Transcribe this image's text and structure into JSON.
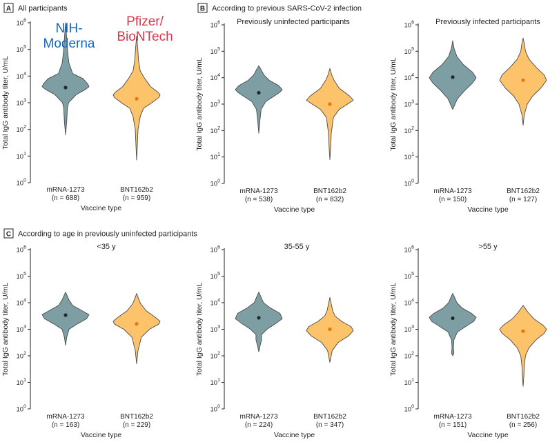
{
  "annotations": [
    {
      "lines": [
        "NIH-",
        "Moderna"
      ],
      "color": "#1565c0"
    },
    {
      "lines": [
        "Pfizer/",
        "BioNTech"
      ],
      "color": "#e0364a"
    }
  ],
  "colors": {
    "mrna": "#7d9ea3",
    "bnt": "#fcc36b",
    "mrna_dot": "#1f2b2e",
    "bnt_dot": "#e8760a"
  },
  "chart_data": [
    {
      "panel": "A",
      "section_title": "All participants",
      "subtitle": "",
      "type": "violin",
      "ylabel": "Total IgG antibody titer, U/mL",
      "xlabel": "Vaccine type",
      "yscale": "log10",
      "ylim": [
        1,
        1000000
      ],
      "series": [
        {
          "name": "mRNA-1273",
          "n_label": "(n = 688)",
          "median": 3700,
          "profile": [
            [
              1.8,
              0
            ],
            [
              2.3,
              0.05
            ],
            [
              2.8,
              0.08
            ],
            [
              3.0,
              0.13
            ],
            [
              3.3,
              0.45
            ],
            [
              3.5,
              0.85
            ],
            [
              3.6,
              1.0
            ],
            [
              3.7,
              0.95
            ],
            [
              3.9,
              0.75
            ],
            [
              4.1,
              0.3
            ],
            [
              4.5,
              0.14
            ],
            [
              4.9,
              0.09
            ],
            [
              5.4,
              0.05
            ],
            [
              6.0,
              0
            ]
          ]
        },
        {
          "name": "BNT162b2",
          "n_label": "(n = 959)",
          "median": 1400,
          "profile": [
            [
              0.85,
              0
            ],
            [
              1.4,
              0.03
            ],
            [
              2.0,
              0.06
            ],
            [
              2.5,
              0.16
            ],
            [
              2.8,
              0.3
            ],
            [
              3.0,
              0.65
            ],
            [
              3.2,
              0.95
            ],
            [
              3.3,
              1.0
            ],
            [
              3.4,
              0.9
            ],
            [
              3.6,
              0.6
            ],
            [
              3.9,
              0.35
            ],
            [
              4.2,
              0.15
            ],
            [
              4.6,
              0.08
            ],
            [
              5.0,
              0.05
            ],
            [
              5.5,
              0
            ]
          ]
        }
      ]
    },
    {
      "panel": "B",
      "section_title": "According to previous SARS-CoV-2 infection",
      "subtitle": "Previously uninfected participants",
      "type": "violin",
      "ylabel": "Total IgG antibody titer, U/mL",
      "xlabel": "Vaccine type",
      "yscale": "log10",
      "ylim": [
        1,
        1000000
      ],
      "series": [
        {
          "name": "mRNA-1273",
          "n_label": "(n = 538)",
          "median": 2700,
          "profile": [
            [
              1.9,
              0
            ],
            [
              2.4,
              0.05
            ],
            [
              2.8,
              0.1
            ],
            [
              3.1,
              0.3
            ],
            [
              3.3,
              0.65
            ],
            [
              3.45,
              0.9
            ],
            [
              3.55,
              1.0
            ],
            [
              3.7,
              0.85
            ],
            [
              3.9,
              0.45
            ],
            [
              4.1,
              0.22
            ],
            [
              4.3,
              0.1
            ],
            [
              4.45,
              0
            ]
          ]
        },
        {
          "name": "BNT162b2",
          "n_label": "(n = 832)",
          "median": 1000,
          "profile": [
            [
              0.9,
              0
            ],
            [
              1.3,
              0.03
            ],
            [
              1.9,
              0.06
            ],
            [
              2.5,
              0.15
            ],
            [
              2.8,
              0.4
            ],
            [
              3.0,
              0.75
            ],
            [
              3.15,
              1.0
            ],
            [
              3.3,
              0.85
            ],
            [
              3.6,
              0.4
            ],
            [
              3.9,
              0.18
            ],
            [
              4.1,
              0.08
            ],
            [
              4.35,
              0
            ]
          ]
        }
      ]
    },
    {
      "panel": "",
      "section_title": "",
      "subtitle": "Previously infected participants",
      "type": "violin",
      "ylabel": "Total IgG antibody titer, U/mL",
      "xlabel": "Vaccine type",
      "yscale": "log10",
      "ylim": [
        1,
        1000000
      ],
      "series": [
        {
          "name": "mRNA-1273",
          "n_label": "(n = 150)",
          "median": 10500,
          "profile": [
            [
              2.8,
              0
            ],
            [
              3.2,
              0.2
            ],
            [
              3.5,
              0.5
            ],
            [
              3.8,
              0.85
            ],
            [
              4.0,
              1.0
            ],
            [
              4.2,
              0.85
            ],
            [
              4.5,
              0.45
            ],
            [
              4.8,
              0.18
            ],
            [
              5.1,
              0.06
            ],
            [
              5.4,
              0
            ]
          ]
        },
        {
          "name": "BNT162b2",
          "n_label": "(n = 127)",
          "median": 8000,
          "profile": [
            [
              2.2,
              0
            ],
            [
              2.6,
              0.05
            ],
            [
              3.0,
              0.18
            ],
            [
              3.3,
              0.4
            ],
            [
              3.6,
              0.75
            ],
            [
              3.9,
              1.0
            ],
            [
              4.1,
              0.9
            ],
            [
              4.4,
              0.55
            ],
            [
              4.7,
              0.25
            ],
            [
              5.0,
              0.1
            ],
            [
              5.3,
              0.05
            ],
            [
              5.5,
              0
            ]
          ]
        }
      ]
    },
    {
      "panel": "C",
      "section_title": "According to age in previously uninfected participants",
      "subtitle": "<35 y",
      "type": "violin",
      "ylabel": "Total IgG antibody titer, U/mL",
      "xlabel": "Vaccine type",
      "yscale": "log10",
      "ylim": [
        1,
        1000000
      ],
      "series": [
        {
          "name": "mRNA-1273",
          "n_label": "(n = 163)",
          "median": 3400,
          "profile": [
            [
              2.4,
              0
            ],
            [
              2.7,
              0.05
            ],
            [
              3.0,
              0.15
            ],
            [
              3.2,
              0.5
            ],
            [
              3.4,
              0.9
            ],
            [
              3.55,
              1.0
            ],
            [
              3.7,
              0.7
            ],
            [
              3.9,
              0.3
            ],
            [
              4.1,
              0.15
            ],
            [
              4.4,
              0
            ]
          ]
        },
        {
          "name": "BNT162b2",
          "n_label": "(n = 229)",
          "median": 1600,
          "profile": [
            [
              1.7,
              0
            ],
            [
              2.2,
              0.06
            ],
            [
              2.7,
              0.2
            ],
            [
              3.0,
              0.55
            ],
            [
              3.2,
              0.95
            ],
            [
              3.3,
              1.0
            ],
            [
              3.45,
              0.8
            ],
            [
              3.7,
              0.4
            ],
            [
              3.95,
              0.18
            ],
            [
              4.15,
              0.08
            ],
            [
              4.35,
              0
            ]
          ]
        }
      ]
    },
    {
      "panel": "",
      "section_title": "",
      "subtitle": "35-55 y",
      "type": "violin",
      "ylabel": "Total IgG antibody titer, U/mL",
      "xlabel": "Vaccine type",
      "yscale": "log10",
      "ylim": [
        1,
        1000000
      ],
      "series": [
        {
          "name": "mRNA-1273",
          "n_label": "(n = 224)",
          "median": 2700,
          "profile": [
            [
              2.15,
              0
            ],
            [
              2.4,
              0.06
            ],
            [
              2.6,
              0.12
            ],
            [
              2.8,
              0.12
            ],
            [
              3.0,
              0.35
            ],
            [
              3.2,
              0.7
            ],
            [
              3.4,
              1.0
            ],
            [
              3.6,
              0.9
            ],
            [
              3.8,
              0.5
            ],
            [
              4.0,
              0.2
            ],
            [
              4.2,
              0.1
            ],
            [
              4.4,
              0
            ]
          ]
        },
        {
          "name": "BNT162b2",
          "n_label": "(n = 347)",
          "median": 1000,
          "profile": [
            [
              1.75,
              0
            ],
            [
              2.2,
              0.1
            ],
            [
              2.5,
              0.35
            ],
            [
              2.75,
              0.8
            ],
            [
              2.95,
              1.0
            ],
            [
              3.1,
              0.9
            ],
            [
              3.3,
              0.5
            ],
            [
              3.5,
              0.22
            ],
            [
              3.7,
              0.12
            ],
            [
              3.95,
              0.06
            ],
            [
              4.2,
              0
            ]
          ]
        }
      ]
    },
    {
      "panel": "",
      "section_title": "",
      "subtitle": ">55 y",
      "type": "violin",
      "ylabel": "Total IgG antibody titer, U/mL",
      "xlabel": "Vaccine type",
      "yscale": "log10",
      "ylim": [
        1,
        1000000
      ],
      "series": [
        {
          "name": "mRNA-1273",
          "n_label": "(n = 151)",
          "median": 2600,
          "profile": [
            [
              2.0,
              0
            ],
            [
              2.1,
              0.05
            ],
            [
              2.3,
              0.03
            ],
            [
              2.6,
              0.05
            ],
            [
              2.9,
              0.2
            ],
            [
              3.1,
              0.55
            ],
            [
              3.3,
              0.9
            ],
            [
              3.45,
              1.0
            ],
            [
              3.6,
              0.8
            ],
            [
              3.8,
              0.4
            ],
            [
              4.0,
              0.18
            ],
            [
              4.2,
              0.08
            ],
            [
              4.35,
              0
            ]
          ]
        },
        {
          "name": "BNT162b2",
          "n_label": "(n = 256)",
          "median": 850,
          "profile": [
            [
              0.85,
              0
            ],
            [
              1.2,
              0.03
            ],
            [
              1.6,
              0.05
            ],
            [
              2.0,
              0.1
            ],
            [
              2.3,
              0.25
            ],
            [
              2.6,
              0.55
            ],
            [
              2.85,
              0.9
            ],
            [
              3.0,
              1.0
            ],
            [
              3.15,
              0.85
            ],
            [
              3.4,
              0.45
            ],
            [
              3.65,
              0.2
            ],
            [
              3.9,
              0
            ]
          ]
        }
      ]
    }
  ]
}
